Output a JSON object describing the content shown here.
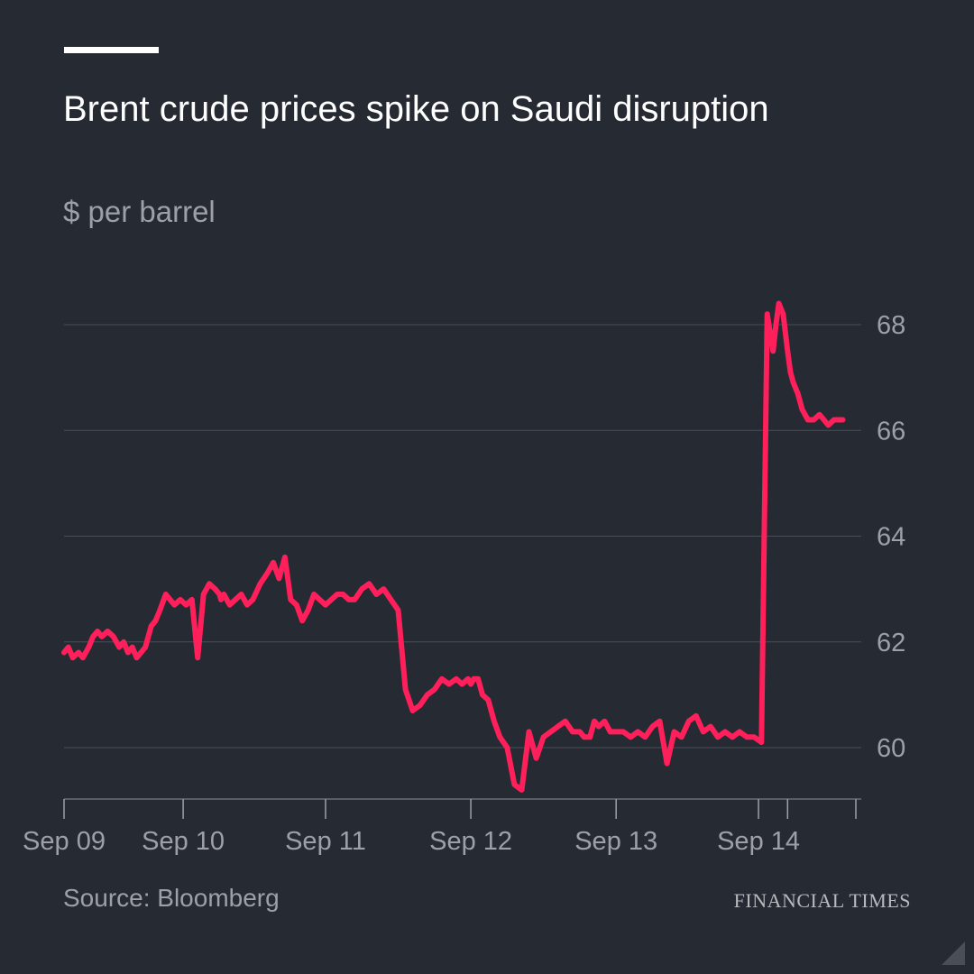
{
  "header": {
    "title": "Brent crude prices spike on Saudi disruption",
    "subtitle": "$ per barrel"
  },
  "footer": {
    "source": "Source: Bloomberg",
    "brand": "FINANCIAL TIMES"
  },
  "colors": {
    "background": "#262a33",
    "line": "#ff1f5a",
    "grid": "#4a4e57",
    "text_muted": "#9da0a6"
  },
  "icons": [
    "corner-resize-icon"
  ],
  "chart_data": {
    "type": "line",
    "title": "Brent crude prices spike on Saudi disruption",
    "subtitle": "$ per barrel",
    "xlabel": "",
    "ylabel": "",
    "grid": true,
    "yaxis_side": "right",
    "ylim": [
      59,
      69
    ],
    "xlim": [
      0,
      5.45
    ],
    "yticks": [
      60,
      62,
      64,
      66,
      68
    ],
    "xticks": [
      {
        "label": "Sep 09",
        "value": 0
      },
      {
        "label": "Sep 10",
        "value": 0.82
      },
      {
        "label": "Sep 11",
        "value": 1.8
      },
      {
        "label": "Sep 12",
        "value": 2.8
      },
      {
        "label": "Sep 13",
        "value": 3.8
      },
      {
        "label": "Sep 14",
        "value": 4.78
      }
    ],
    "series": [
      {
        "color": "#ff1f5a",
        "x": [
          0,
          0.03,
          0.06,
          0.1,
          0.13,
          0.17,
          0.2,
          0.23,
          0.26,
          0.3,
          0.34,
          0.38,
          0.41,
          0.44,
          0.47,
          0.5,
          0.53,
          0.56,
          0.6,
          0.63,
          0.66,
          0.7,
          0.73,
          0.76,
          0.8,
          0.84,
          0.88,
          0.92,
          0.96,
          1.0,
          1.04,
          1.07,
          1.07,
          1.08,
          1.1,
          1.14,
          1.18,
          1.22,
          1.26,
          1.3,
          1.35,
          1.4,
          1.44,
          1.48,
          1.52,
          1.56,
          1.6,
          1.64,
          1.68,
          1.72,
          1.76,
          1.8,
          1.84,
          1.88,
          1.92,
          1.96,
          2.0,
          2.05,
          2.1,
          2.15,
          2.2,
          2.25,
          2.3,
          2.35,
          2.4,
          2.45,
          2.5,
          2.55,
          2.6,
          2.65,
          2.7,
          2.74,
          2.78,
          2.8,
          2.82,
          2.85,
          2.88,
          2.92,
          2.96,
          3.0,
          3.05,
          3.1,
          3.15,
          3.2,
          3.25,
          3.3,
          3.35,
          3.4,
          3.45,
          3.5,
          3.55,
          3.58,
          3.62,
          3.65,
          3.68,
          3.72,
          3.76,
          3.8,
          3.85,
          3.9,
          3.95,
          4.0,
          4.05,
          4.1,
          4.15,
          4.2,
          4.25,
          4.3,
          4.35,
          4.4,
          4.45,
          4.5,
          4.55,
          4.6,
          4.65,
          4.7,
          4.75,
          4.8,
          4.84,
          4.88,
          4.9,
          4.92,
          4.95,
          4.98,
          5.0,
          5.02,
          5.05,
          5.08,
          5.12,
          5.16,
          5.2,
          5.23,
          5.26,
          5.3,
          5.33,
          5.36
        ],
        "y": [
          61.8,
          61.9,
          61.7,
          61.8,
          61.7,
          61.9,
          62.1,
          62.2,
          62.1,
          62.2,
          62.1,
          61.9,
          62.0,
          61.8,
          61.9,
          61.7,
          61.8,
          61.9,
          62.3,
          62.4,
          62.6,
          62.9,
          62.8,
          62.7,
          62.8,
          62.7,
          62.8,
          61.7,
          62.9,
          63.1,
          63.0,
          62.9,
          62.9,
          62.8,
          62.9,
          62.7,
          62.8,
          62.9,
          62.7,
          62.8,
          63.1,
          63.3,
          63.5,
          63.2,
          63.6,
          62.8,
          62.7,
          62.4,
          62.6,
          62.9,
          62.8,
          62.7,
          62.8,
          62.9,
          62.9,
          62.8,
          62.8,
          63.0,
          63.1,
          62.9,
          63.0,
          62.8,
          62.6,
          61.1,
          60.7,
          60.8,
          61.0,
          61.1,
          61.3,
          61.2,
          61.3,
          61.2,
          61.3,
          61.2,
          61.3,
          61.3,
          61.0,
          60.9,
          60.5,
          60.2,
          60.0,
          59.3,
          59.2,
          60.3,
          59.8,
          60.2,
          60.3,
          60.4,
          60.5,
          60.3,
          60.3,
          60.2,
          60.2,
          60.5,
          60.4,
          60.5,
          60.3,
          60.3,
          60.3,
          60.2,
          60.3,
          60.2,
          60.4,
          60.5,
          59.7,
          60.3,
          60.2,
          60.5,
          60.6,
          60.3,
          60.4,
          60.2,
          60.3,
          60.2,
          60.3,
          60.2,
          60.2,
          60.1,
          68.2,
          67.5,
          68.0,
          68.4,
          68.2,
          67.5,
          67.1,
          66.9,
          66.7,
          66.4,
          66.2,
          66.2,
          66.3,
          66.2,
          66.1,
          66.2,
          66.2,
          66.2
        ]
      }
    ]
  }
}
